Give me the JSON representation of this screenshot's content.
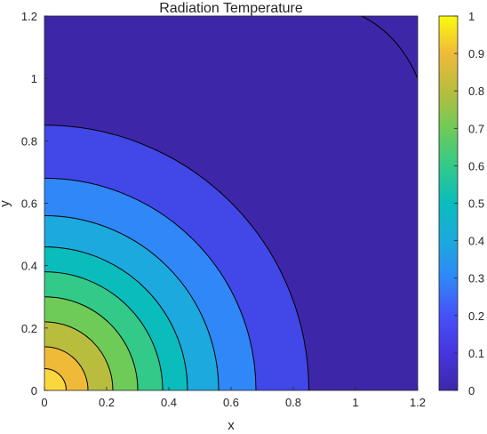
{
  "chart_data": {
    "type": "contour",
    "title": "Radiation Temperature",
    "xlabel": "x",
    "ylabel": "y",
    "xlim": [
      0,
      1.2
    ],
    "ylim": [
      0,
      1.2
    ],
    "x_ticks": [
      "0",
      "0.2",
      "0.4",
      "0.6",
      "0.8",
      "1",
      "1.2"
    ],
    "y_ticks": [
      "0",
      "0.2",
      "0.4",
      "0.6",
      "0.8",
      "1",
      "1.2"
    ],
    "colorbar": {
      "range": [
        0,
        1
      ],
      "ticks": [
        "0",
        "0.1",
        "0.2",
        "0.3",
        "0.4",
        "0.5",
        "0.6",
        "0.7",
        "0.8",
        "0.9",
        "1"
      ],
      "colormap": "parula"
    },
    "contour_levels": [
      0.1,
      0.2,
      0.3,
      0.4,
      0.5,
      0.6,
      0.7,
      0.8,
      0.9
    ],
    "contour_radii": [
      0.85,
      0.68,
      0.56,
      0.46,
      0.38,
      0.3,
      0.22,
      0.14,
      0.07
    ],
    "outer_contour": {
      "level": 0.0,
      "from": [
        1.02,
        1.2
      ],
      "to": [
        1.2,
        1.0
      ]
    },
    "level_colors": [
      "#3e26a8",
      "#4247e8",
      "#2f87f8",
      "#1ca9de",
      "#0bbcbd",
      "#33c989",
      "#6fcb58",
      "#b8bd3e",
      "#f0ba39",
      "#fad73c"
    ],
    "colorbar_stops": [
      "#3e26a8",
      "#4735df",
      "#4651f9",
      "#2f87f8",
      "#1ca9de",
      "#0bbcbd",
      "#33c989",
      "#6fcb58",
      "#b8bd3e",
      "#f0ba39",
      "#f9fb0e"
    ],
    "grid": false
  }
}
